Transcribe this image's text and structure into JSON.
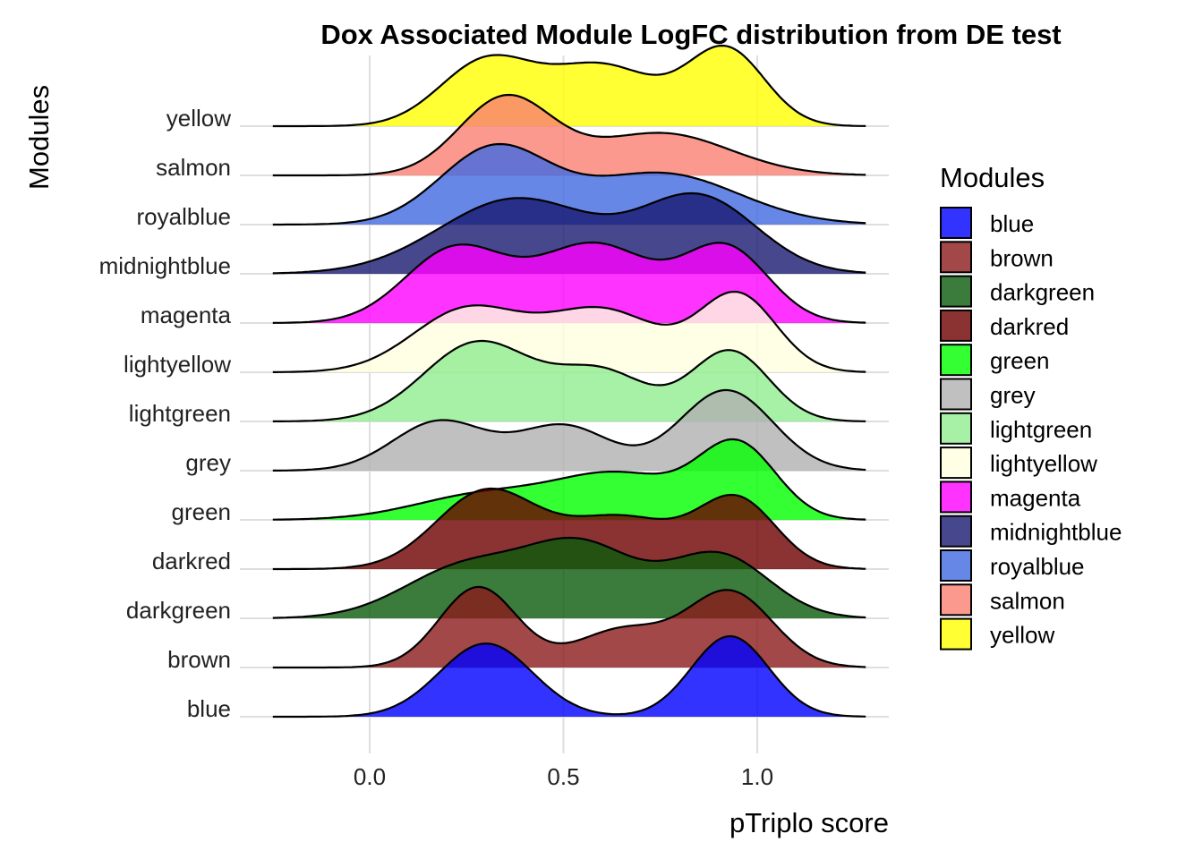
{
  "chart_data": {
    "type": "ridgeline",
    "title": "Dox Associated Module LogFC distribution from DE test",
    "xlabel": "pTriplo score",
    "ylabel": "Modules",
    "xlim": [
      -0.25,
      1.28
    ],
    "x_ticks": [
      "0.0",
      "0.5",
      "1.0"
    ],
    "x_tick_values": [
      0.0,
      0.5,
      1.0
    ],
    "grid": true,
    "legend": {
      "title": "Modules",
      "position": "right"
    },
    "series": [
      {
        "name": "blue",
        "color": "#0000FF",
        "components": [
          [
            0.3,
            0.12,
            0.8
          ],
          [
            0.93,
            0.1,
            0.88
          ]
        ]
      },
      {
        "name": "brown",
        "color": "#8B1A1A",
        "components": [
          [
            0.28,
            0.1,
            0.75
          ],
          [
            0.65,
            0.12,
            0.35
          ],
          [
            0.93,
            0.11,
            0.7
          ]
        ]
      },
      {
        "name": "darkgreen",
        "color": "#0A5A0A",
        "components": [
          [
            0.25,
            0.16,
            0.45
          ],
          [
            0.55,
            0.14,
            0.6
          ],
          [
            0.9,
            0.13,
            0.55
          ]
        ]
      },
      {
        "name": "darkred",
        "color": "#6E0000",
        "components": [
          [
            0.3,
            0.13,
            0.75
          ],
          [
            0.65,
            0.15,
            0.5
          ],
          [
            0.95,
            0.1,
            0.65
          ]
        ]
      },
      {
        "name": "green",
        "color": "#00FF00",
        "components": [
          [
            0.3,
            0.18,
            0.35
          ],
          [
            0.65,
            0.16,
            0.6
          ],
          [
            0.95,
            0.1,
            1.0
          ]
        ]
      },
      {
        "name": "grey",
        "color": "#B0B0B0",
        "components": [
          [
            0.18,
            0.12,
            0.55
          ],
          [
            0.5,
            0.12,
            0.5
          ],
          [
            0.92,
            0.12,
            0.9
          ]
        ]
      },
      {
        "name": "lightgreen",
        "color": "#90EE90",
        "components": [
          [
            0.28,
            0.14,
            0.9
          ],
          [
            0.6,
            0.12,
            0.55
          ],
          [
            0.93,
            0.1,
            0.8
          ]
        ]
      },
      {
        "name": "lightyellow",
        "color": "#FFFFE0",
        "components": [
          [
            0.25,
            0.14,
            0.65
          ],
          [
            0.6,
            0.15,
            0.65
          ],
          [
            0.95,
            0.1,
            0.8
          ]
        ]
      },
      {
        "name": "magenta",
        "color": "#FF00FF",
        "components": [
          [
            0.22,
            0.13,
            0.75
          ],
          [
            0.58,
            0.15,
            0.8
          ],
          [
            0.92,
            0.11,
            0.75
          ]
        ]
      },
      {
        "name": "midnightblue",
        "color": "#191970",
        "components": [
          [
            0.38,
            0.2,
            0.85
          ],
          [
            0.85,
            0.15,
            0.85
          ]
        ]
      },
      {
        "name": "royalblue",
        "color": "#4169E1",
        "components": [
          [
            0.32,
            0.14,
            0.95
          ],
          [
            0.75,
            0.2,
            0.65
          ]
        ]
      },
      {
        "name": "salmon",
        "color": "#FA8072",
        "components": [
          [
            0.35,
            0.12,
            1.0
          ],
          [
            0.75,
            0.18,
            0.55
          ]
        ]
      },
      {
        "name": "yellow",
        "color": "#FFFF00",
        "components": [
          [
            0.3,
            0.12,
            0.8
          ],
          [
            0.6,
            0.14,
            0.75
          ],
          [
            0.92,
            0.1,
            0.95
          ]
        ]
      }
    ]
  }
}
